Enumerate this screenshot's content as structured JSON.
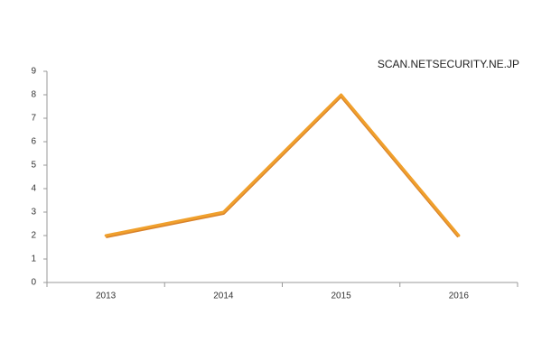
{
  "chart_data": {
    "type": "line",
    "annotation": "SCAN.NETSECURITY.NE.JP",
    "categories": [
      "2013",
      "2014",
      "2015",
      "2016"
    ],
    "values": [
      2,
      3,
      8,
      2
    ],
    "color": "#f0a02c",
    "ylim": [
      0,
      9
    ],
    "yticks": [
      0,
      1,
      2,
      3,
      4,
      5,
      6,
      7,
      8,
      9
    ],
    "grid": false
  }
}
